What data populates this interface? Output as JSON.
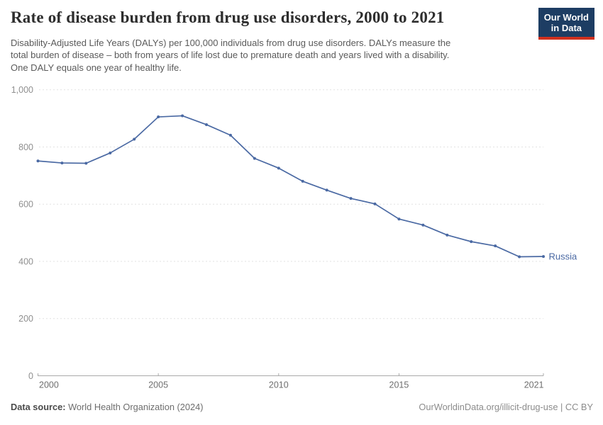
{
  "header": {
    "title": "Rate of disease burden from drug use disorders, 2000 to 2021",
    "subtitle_lines": [
      "Disability-Adjusted Life Years (DALYs) per 100,000 individuals from drug use disorders. DALYs measure the",
      "total burden of disease – both from years of life lost due to premature death and years lived with a disability.",
      "One DALY equals one year of healthy life."
    ],
    "logo": {
      "line1": "Our World",
      "line2": "in Data",
      "bg_color": "#1d3d63",
      "accent_color": "#d0301e"
    }
  },
  "chart_data": {
    "type": "line",
    "title": "Rate of disease burden from drug use disorders, 2000 to 2021",
    "xlabel": "",
    "ylabel": "DALYs per 100,000 individuals",
    "x": [
      2000,
      2001,
      2002,
      2003,
      2004,
      2005,
      2006,
      2007,
      2008,
      2009,
      2010,
      2011,
      2012,
      2013,
      2014,
      2015,
      2016,
      2017,
      2018,
      2019,
      2020,
      2021
    ],
    "series": [
      {
        "name": "Russia",
        "color": "#4a69a3",
        "values": [
          751,
          744,
          743,
          779,
          827,
          905,
          909,
          878,
          841,
          760,
          726,
          680,
          649,
          620,
          601,
          548,
          527,
          492,
          469,
          454,
          416,
          417
        ]
      }
    ],
    "ylim": [
      0,
      1000
    ],
    "yticks": {
      "values": [
        0,
        200,
        400,
        600,
        800,
        1000
      ],
      "labels": [
        "0",
        "200",
        "400",
        "600",
        "800",
        "1,000"
      ]
    },
    "xticks": {
      "values": [
        2000,
        2005,
        2010,
        2015,
        2021
      ],
      "labels": [
        "2000",
        "2005",
        "2010",
        "2015",
        "2021"
      ]
    },
    "grid": "horizontal-dashed",
    "legend": "line-end-label",
    "colors": {
      "gridline": "#e2e2e2",
      "axis": "#a9a9a9",
      "y_tick_label": "#8f8f8f",
      "x_tick_label": "#6f6f6f"
    }
  },
  "footer": {
    "datasource_label": "Data source:",
    "datasource_value": " World Health Organization (2024)",
    "link": "OurWorldinData.org/illicit-drug-use",
    "license_suffix": " | CC BY"
  }
}
